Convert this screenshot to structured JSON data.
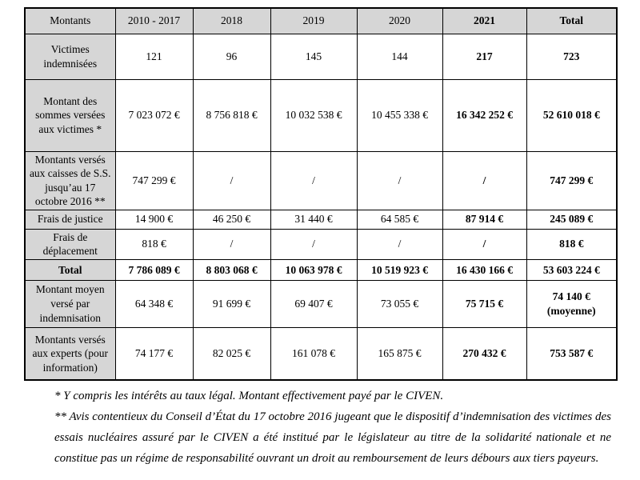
{
  "table": {
    "columns": [
      "Montants",
      "2010 - 2017",
      "2018",
      "2019",
      "2020",
      "2021",
      "Total"
    ],
    "bold_columns": [
      5,
      6
    ],
    "rows": [
      {
        "label": "Victimes indemnisées",
        "values": [
          "121",
          "96",
          "145",
          "144",
          "217",
          "723"
        ]
      },
      {
        "label": "Montant des sommes versées aux victimes *",
        "values": [
          "7 023 072 €",
          "8 756 818 €",
          "10 032 538 €",
          "10 455 338 €",
          "16 342 252 €",
          "52 610 018 €"
        ]
      },
      {
        "label": "Montants versés aux caisses de S.S. jusqu’au 17 octobre 2016 **",
        "values": [
          "747 299 €",
          "/",
          "/",
          "/",
          "/",
          "747 299 €"
        ]
      },
      {
        "label": "Frais de justice",
        "values": [
          "14 900 €",
          "46 250 €",
          "31 440 €",
          "64 585 €",
          "87 914 €",
          "245 089 €"
        ]
      },
      {
        "label": "Frais de déplacement",
        "values": [
          "818 €",
          "/",
          "/",
          "/",
          "/",
          "818 €"
        ]
      },
      {
        "label": "Total",
        "bold_row": true,
        "values": [
          "7 786 089 €",
          "8 803 068 €",
          "10 063 978 €",
          "10 519 923 €",
          "16 430 166 €",
          "53 603 224 €"
        ]
      },
      {
        "label": "Montant moyen versé par indemnisation",
        "values": [
          "64 348 €",
          "91 699 €",
          "69 407 €",
          "73 055 €",
          "75 715 €",
          "74 140 €\n(moyenne)"
        ]
      },
      {
        "label": "Montants versés aux experts (pour information)",
        "values": [
          "74 177 €",
          "82 025 €",
          "161 078 €",
          "165 875 €",
          "270 432 €",
          "753 587 €"
        ]
      }
    ]
  },
  "footnotes": [
    "* Y compris les intérêts au taux légal. Montant effectivement payé par le CIVEN.",
    "** Avis contentieux du Conseil d’État du 17 octobre 2016 jugeant que le dispositif d’indemnisation des victimes des essais nucléaires assuré par le CIVEN a été institué par le législateur au titre de la solidarité nationale et ne constitue pas un régime de responsabilité ouvrant un droit au remboursement de leurs débours aux tiers payeurs."
  ],
  "colors": {
    "header_fill": "#d6d6d6",
    "border": "#000000",
    "text": "#000000",
    "background": "#ffffff"
  }
}
